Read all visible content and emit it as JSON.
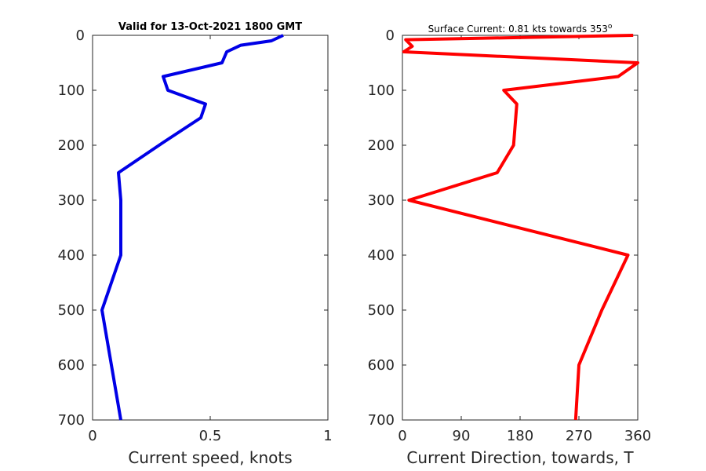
{
  "chart_data": [
    {
      "type": "line",
      "title": "Valid for 13-Oct-2021 1800 GMT",
      "xlabel": "Current speed, knots",
      "ylabel": "",
      "xlim": [
        0,
        1
      ],
      "ylim": [
        0,
        700
      ],
      "y_reversed": true,
      "grid": false,
      "xticks": [
        0,
        0.5,
        1
      ],
      "xtick_labels": [
        "0",
        "0.5",
        "1"
      ],
      "yticks": [
        0,
        100,
        200,
        300,
        400,
        500,
        600,
        700
      ],
      "ytick_labels": [
        "0",
        "100",
        "200",
        "300",
        "400",
        "500",
        "600",
        "700"
      ],
      "series": [
        {
          "color": "#0000e6",
          "x": [
            0.81,
            0.76,
            0.63,
            0.57,
            0.55,
            0.3,
            0.32,
            0.48,
            0.46,
            0.3,
            0.11,
            0.12,
            0.12,
            0.04,
            0.12
          ],
          "y": [
            0,
            10,
            18,
            30,
            50,
            75,
            100,
            125,
            150,
            195,
            250,
            300,
            400,
            500,
            700
          ]
        }
      ]
    },
    {
      "type": "line",
      "title": "Surface Current: 0.81 kts towards 353",
      "title_superscript": "o",
      "xlabel": "Current Direction, towards, T",
      "ylabel": "",
      "xlim": [
        0,
        360
      ],
      "ylim": [
        0,
        700
      ],
      "y_reversed": true,
      "grid": false,
      "xticks": [
        0,
        90,
        180,
        270,
        360
      ],
      "xtick_labels": [
        "0",
        "90",
        "180",
        "270",
        "360"
      ],
      "yticks": [
        0,
        100,
        200,
        300,
        400,
        500,
        600,
        700
      ],
      "ytick_labels": [
        "0",
        "100",
        "200",
        "300",
        "400",
        "500",
        "600",
        "700"
      ],
      "series": [
        {
          "color": "#ff0000",
          "x": [
            353,
            5,
            15,
            2,
            360,
            330,
            155,
            175,
            170,
            145,
            10,
            345,
            305,
            270,
            265
          ],
          "y": [
            0,
            8,
            20,
            30,
            50,
            75,
            100,
            125,
            200,
            250,
            300,
            400,
            500,
            600,
            700
          ]
        }
      ]
    }
  ]
}
